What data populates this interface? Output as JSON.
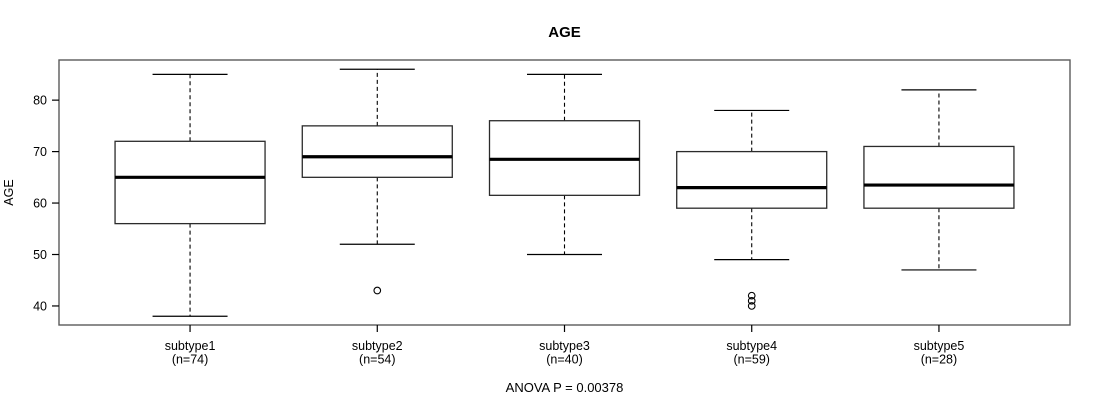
{
  "chart_data": {
    "type": "boxplot",
    "title": "AGE",
    "xlabel": "",
    "ylabel": "AGE",
    "annotation": "ANOVA P = 0.00378",
    "y_ticks": [
      40,
      50,
      60,
      70,
      80
    ],
    "ylim": [
      36.3,
      87.8
    ],
    "grid": false,
    "legend": "none",
    "categories": [
      "subtype1",
      "subtype2",
      "subtype3",
      "subtype4",
      "subtype5"
    ],
    "groups": [
      {
        "label": "subtype1",
        "sublabel": "(n=74)",
        "n": 74,
        "whisker_low": 38,
        "q1": 56,
        "median": 65,
        "q3": 72,
        "whisker_high": 85,
        "outliers": []
      },
      {
        "label": "subtype2",
        "sublabel": "(n=54)",
        "n": 54,
        "whisker_low": 52,
        "q1": 65,
        "median": 69,
        "q3": 75,
        "whisker_high": 86,
        "outliers": [
          43
        ]
      },
      {
        "label": "subtype3",
        "sublabel": "(n=40)",
        "n": 40,
        "whisker_low": 50,
        "q1": 61.5,
        "median": 68.5,
        "q3": 76,
        "whisker_high": 85,
        "outliers": []
      },
      {
        "label": "subtype4",
        "sublabel": "(n=59)",
        "n": 59,
        "whisker_low": 49,
        "q1": 59,
        "median": 63,
        "q3": 70,
        "whisker_high": 78,
        "outliers": [
          42,
          41,
          40
        ]
      },
      {
        "label": "subtype5",
        "sublabel": "(n=28)",
        "n": 28,
        "whisker_low": 47,
        "q1": 59,
        "median": 63.5,
        "q3": 71,
        "whisker_high": 82,
        "outliers": []
      }
    ],
    "colors": {
      "background": "#ffffff",
      "frame": "#5a5a5a",
      "box_stroke": "#2b2b2b",
      "box_fill": "#ffffff",
      "median": "#000000",
      "whisker": "#000000",
      "text": "#000000"
    }
  }
}
